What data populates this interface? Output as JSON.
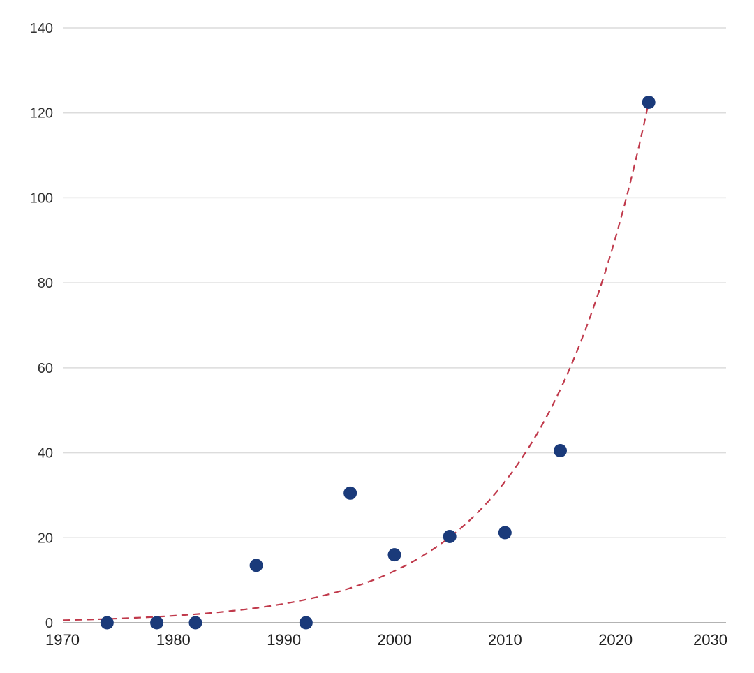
{
  "chart_data": {
    "type": "scatter",
    "xlim": [
      1970,
      2030
    ],
    "ylim": [
      0,
      140
    ],
    "x_ticks": [
      "1970",
      "1980",
      "1990",
      "2000",
      "2010",
      "2020",
      "2030"
    ],
    "y_ticks": [
      "0",
      "20",
      "40",
      "60",
      "80",
      "100",
      "120",
      "140"
    ],
    "grid": true,
    "series": [
      {
        "x": [
          1974,
          1978.5,
          1982,
          1987.5,
          1992,
          1996,
          2000,
          2005,
          2010,
          2015,
          2023
        ],
        "y": [
          0,
          0,
          0,
          13.5,
          0,
          30.5,
          16,
          20.3,
          21.2,
          40.5,
          122.5
        ],
        "color": "#1a3a7a"
      }
    ],
    "trendline": {
      "kind": "exponential",
      "x": [
        1970,
        2023
      ],
      "y": [
        0.6,
        122.5
      ],
      "color": "#c0394b",
      "style": "dashed"
    }
  }
}
